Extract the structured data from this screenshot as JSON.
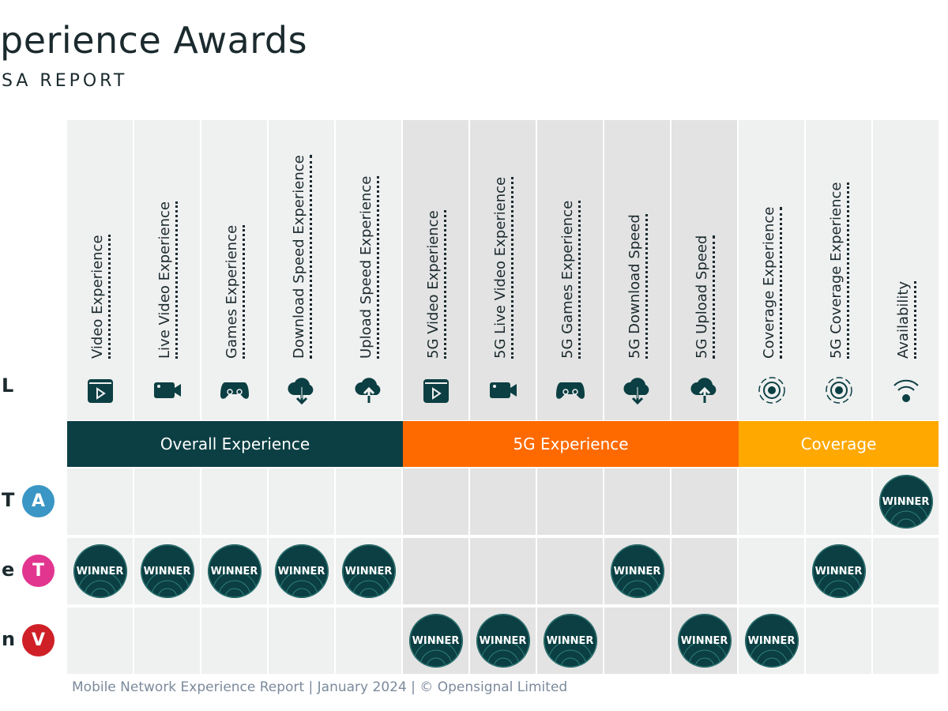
{
  "header": {
    "title": "perience Awards",
    "subtitle": "SA REPORT",
    "left_fragment": "L"
  },
  "colors": {
    "overall": "#0b3f43",
    "g5": "#ff6a00",
    "coverage": "#ffa800",
    "winner": "#0b3f43",
    "att": "#3a96c4",
    "tmobile": "#e2358f",
    "verizon": "#cf2027"
  },
  "columns": [
    {
      "label": "Video Experience",
      "icon": "clapper-play-icon",
      "group": "overall"
    },
    {
      "label": "Live Video Experience",
      "icon": "video-camera-icon",
      "group": "overall"
    },
    {
      "label": "Games Experience",
      "icon": "gamepad-icon",
      "group": "overall"
    },
    {
      "label": "Download Speed Experience",
      "icon": "cloud-download-icon",
      "group": "overall"
    },
    {
      "label": "Upload Speed Experience",
      "icon": "cloud-upload-icon",
      "group": "overall"
    },
    {
      "label": "5G Video Experience",
      "icon": "clapper-play-icon",
      "group": "g5"
    },
    {
      "label": "5G Live Video Experience",
      "icon": "video-camera-icon",
      "group": "g5"
    },
    {
      "label": "5G Games Experience",
      "icon": "gamepad-icon",
      "group": "g5"
    },
    {
      "label": "5G Download Speed",
      "icon": "cloud-download-icon",
      "group": "g5"
    },
    {
      "label": "5G Upload Speed",
      "icon": "cloud-upload-icon",
      "group": "g5"
    },
    {
      "label": "Coverage Experience",
      "icon": "signal-radar-icon",
      "group": "coverage"
    },
    {
      "label": "5G Coverage Experience",
      "icon": "signal-radar-icon",
      "group": "coverage"
    },
    {
      "label": "Availability",
      "icon": "wifi-signal-icon",
      "group": "coverage"
    }
  ],
  "bands": [
    {
      "label": "Overall Experience"
    },
    {
      "label": "5G Experience"
    },
    {
      "label": "Coverage"
    }
  ],
  "winner_label": "WINNER",
  "rows": [
    {
      "label_fragment": "T",
      "avatar": "A",
      "color": "#3a96c4",
      "wins": [
        13
      ]
    },
    {
      "label_fragment": "e",
      "avatar": "T",
      "color": "#e2358f",
      "wins": [
        1,
        2,
        3,
        4,
        5,
        9,
        12
      ]
    },
    {
      "label_fragment": "n",
      "avatar": "V",
      "color": "#cf2027",
      "wins": [
        6,
        7,
        8,
        10,
        11
      ]
    }
  ],
  "footer": "Mobile Network Experience Report | January 2024 | © Opensignal Limited"
}
